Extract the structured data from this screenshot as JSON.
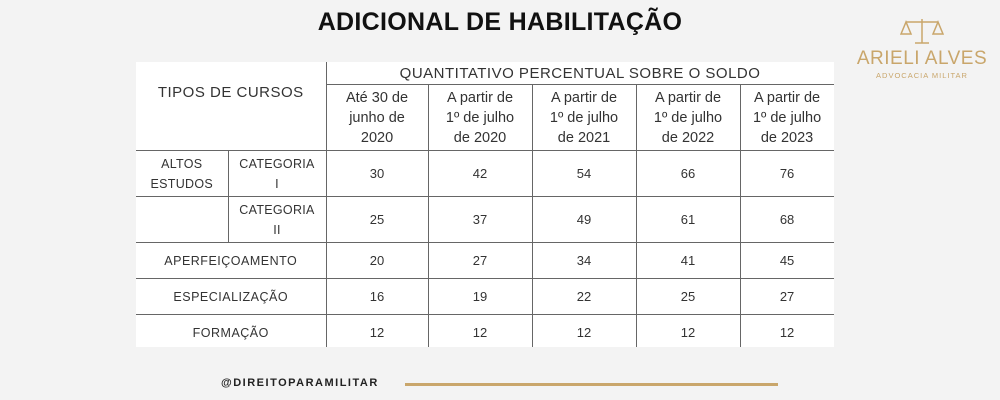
{
  "title": "ADICIONAL DE HABILITAÇÃO",
  "logo": {
    "name": "ARIELI ALVES",
    "subtitle": "ADVOCACIA MILITAR",
    "color": "#c9a66b"
  },
  "table": {
    "row_header": "TIPOS DE CURSOS",
    "group_header": "QUANTITATIVO PERCENTUAL SOBRE O SOLDO",
    "columns": [
      [
        "Até 30 de",
        "junho de",
        "2020"
      ],
      [
        "A partir de",
        "1º de julho",
        "de 2020"
      ],
      [
        "A partir de",
        "1º de julho",
        "de 2021"
      ],
      [
        "A partir de",
        "1º de julho",
        "de 2022"
      ],
      [
        "A partir de",
        "1º de julho",
        "de 2023"
      ]
    ],
    "rows": [
      {
        "label": [
          "ALTOS",
          "ESTUDOS"
        ],
        "sub": [
          "CATEGORIA",
          "I"
        ],
        "values": [
          "30",
          "42",
          "54",
          "66",
          "76"
        ]
      },
      {
        "label": [
          "",
          ""
        ],
        "sub": [
          "CATEGORIA",
          "II"
        ],
        "values": [
          "25",
          "37",
          "49",
          "61",
          "68"
        ]
      },
      {
        "label": "APERFEIÇOAMENTO",
        "values": [
          "20",
          "27",
          "34",
          "41",
          "45"
        ]
      },
      {
        "label": "ESPECIALIZAÇÃO",
        "values": [
          "16",
          "19",
          "22",
          "25",
          "27"
        ]
      },
      {
        "label": "FORMAÇÃO",
        "values": [
          "12",
          "12",
          "12",
          "12",
          "12"
        ]
      }
    ]
  },
  "footer": {
    "handle": "@DIREITOPARAMILITAR",
    "line_color": "#c9a66b"
  }
}
